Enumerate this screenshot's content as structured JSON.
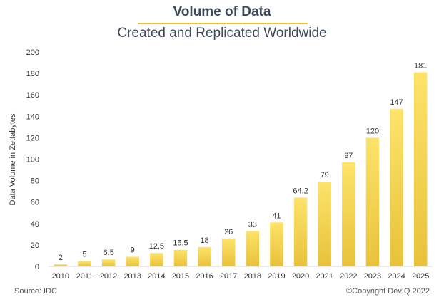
{
  "page": {
    "title": "Volume of Data",
    "subtitle": "Created and Replicated Worldwide",
    "source": "Source: IDC",
    "copyright": "©Copyright DevIQ 2022",
    "accent_color": "#f2c12e"
  },
  "chart_data": {
    "type": "bar",
    "title": "Volume of Data",
    "subtitle": "Created and Replicated Worldwide",
    "xlabel": "",
    "ylabel": "Data Volume in Zettabytes",
    "categories": [
      "2010",
      "2011",
      "2012",
      "2013",
      "2014",
      "2015",
      "2016",
      "2017",
      "2018",
      "2019",
      "2020",
      "2021",
      "2022",
      "2023",
      "2024",
      "2025"
    ],
    "values": [
      2,
      5,
      6.5,
      9,
      12.5,
      15.5,
      18,
      26,
      33,
      41,
      64.2,
      79,
      97,
      120,
      147,
      181
    ],
    "data_labels": [
      "2",
      "5",
      "6.5",
      "9",
      "12.5",
      "15.5",
      "18",
      "26",
      "33",
      "41",
      "64.2",
      "79",
      "97",
      "120",
      "147",
      "181"
    ],
    "ylim": [
      0,
      200
    ],
    "yticks": [
      0,
      20,
      40,
      60,
      80,
      100,
      120,
      140,
      160,
      180,
      200
    ],
    "grid": false,
    "legend": "none",
    "bar_color_top": "#fde36a",
    "bar_color_bottom": "#e8c23a"
  }
}
